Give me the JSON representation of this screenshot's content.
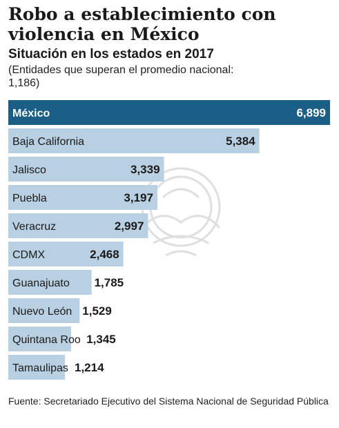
{
  "header": {
    "title": "Robo a establecimiento con violencia en México",
    "subtitle": "Situación en los estados en 2017",
    "note": "(Entidades que  superan el promedio nacional: 1,186)"
  },
  "source": "Fuente: Secretariado Ejecutivo del Sistema Nacional de Seguridad Pública",
  "colors": {
    "highlight": "#1b5f86",
    "bar": "#b9d0e2",
    "highlight_text": "#ffffff",
    "text": "#1a1a1a",
    "watermark": "#d9d9d9"
  },
  "watermark_icon": "eagle-seal-icon",
  "chart_data": {
    "type": "bar",
    "orientation": "horizontal",
    "categories": [
      "México",
      "Baja California",
      "Jalisco",
      "Puebla",
      "Veracruz",
      "CDMX",
      "Guanajuato",
      "Nuevo León",
      "Quintana Roo",
      "Tamaulipas"
    ],
    "values": [
      6899,
      5384,
      3339,
      3197,
      2997,
      2468,
      1785,
      1529,
      1345,
      1214
    ],
    "value_labels": [
      "6,899",
      "5,384",
      "3,339",
      "3,197",
      "2,997",
      "2,468",
      "1,785",
      "1,529",
      "1,345",
      "1,214"
    ],
    "highlight_index": 0,
    "xlim": [
      0,
      6899
    ],
    "grid": false,
    "legend": "none"
  }
}
